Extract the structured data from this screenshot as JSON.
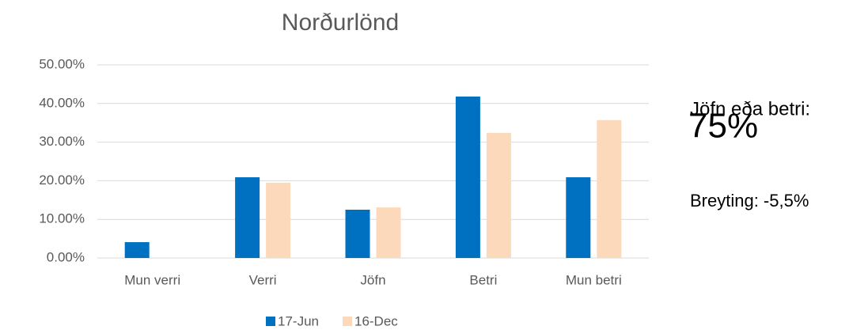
{
  "chart_data": {
    "type": "bar",
    "title": "Norðurlönd",
    "categories": [
      "Mun verri",
      "Verri",
      "Jöfn",
      "Betri",
      "Mun betri"
    ],
    "series": [
      {
        "name": "17-Jun",
        "color": "#0070c0",
        "values": [
          4.1,
          20.9,
          12.5,
          41.8,
          20.9
        ]
      },
      {
        "name": "16-Dec",
        "color": "#fdd9bc",
        "values": [
          0,
          19.5,
          13.1,
          32.4,
          35.7
        ]
      }
    ],
    "ylim": [
      0,
      50
    ],
    "yticks": [
      {
        "value": 0,
        "label": "0.00%"
      },
      {
        "value": 10,
        "label": "10.00%"
      },
      {
        "value": 20,
        "label": "20.00%"
      },
      {
        "value": 30,
        "label": "30.00%"
      },
      {
        "value": 40,
        "label": "40.00%"
      },
      {
        "value": 50,
        "label": "50.00%"
      }
    ],
    "grid": true,
    "legend": "bottom",
    "annotations": [
      "Jöfn eða betri:",
      "75%",
      "Breyting: -5,5%"
    ]
  }
}
